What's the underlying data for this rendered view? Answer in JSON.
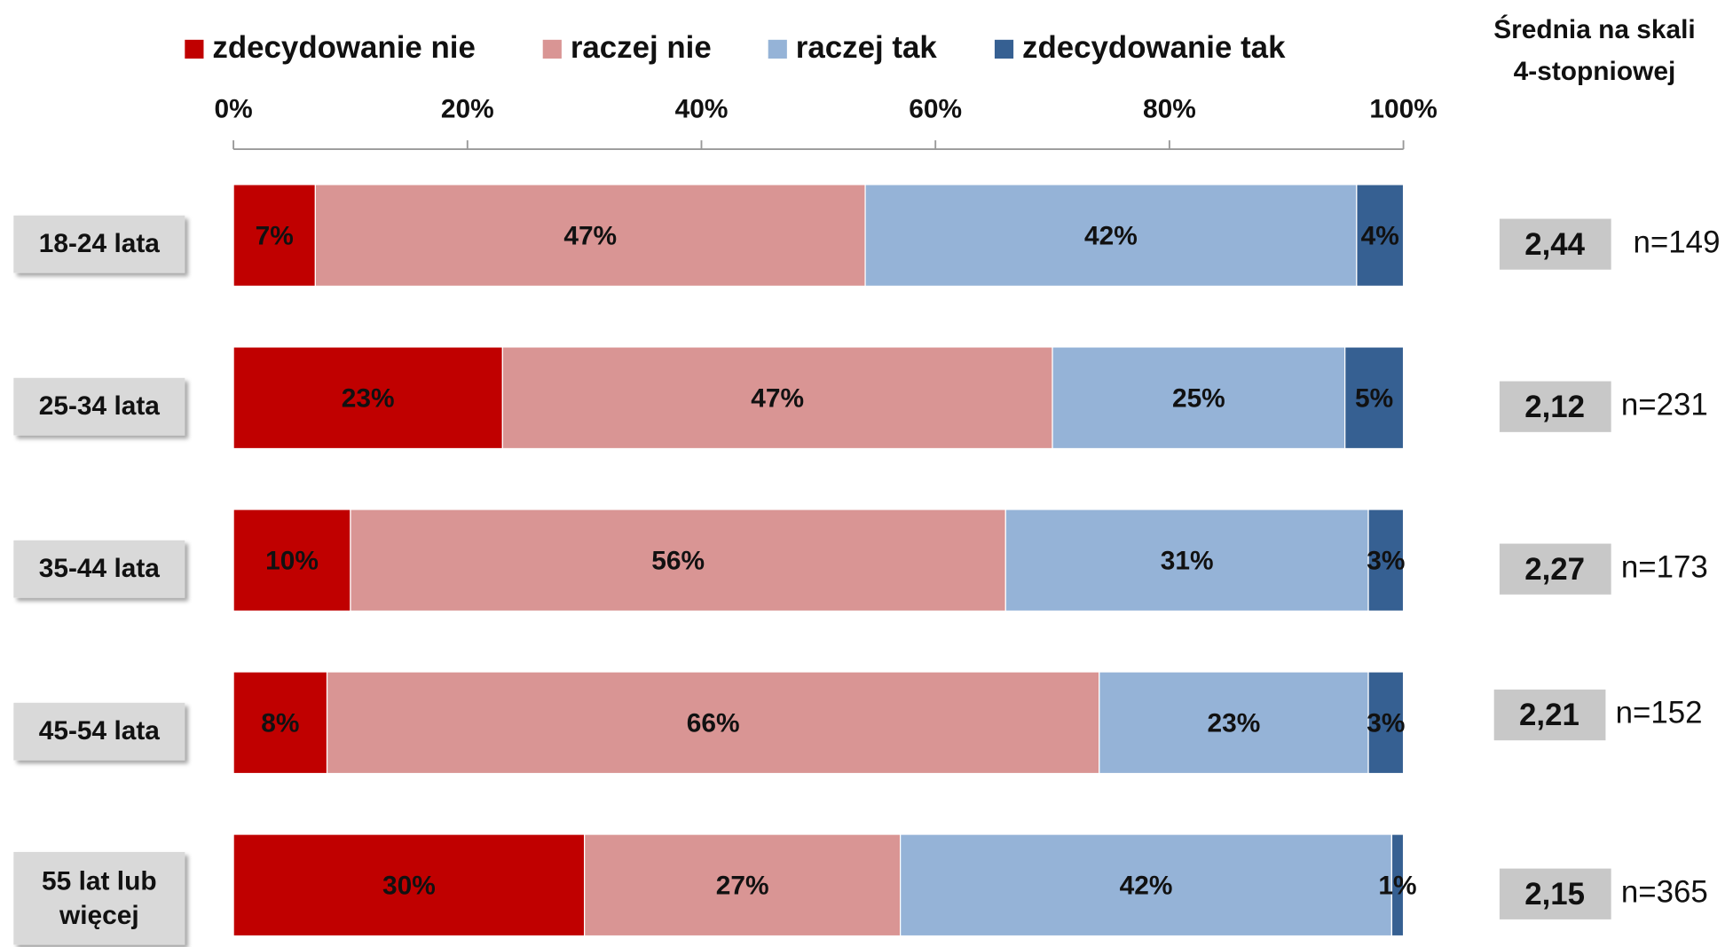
{
  "chart_data": {
    "type": "stacked_barh",
    "categories": [
      "18-24 lata",
      "25-34 lata",
      "35-44 lata",
      "45-54 lata",
      "55 lat lub więcej"
    ],
    "series": [
      {
        "name": "zdecydowanie nie",
        "color": "#c00000",
        "values": [
          7,
          23,
          10,
          8,
          30
        ],
        "value_labels": [
          "7%",
          "23%",
          "10%",
          "8%",
          "30%"
        ]
      },
      {
        "name": "raczej nie",
        "color": "#d99594",
        "values": [
          47,
          47,
          56,
          66,
          27
        ],
        "value_labels": [
          "47%",
          "47%",
          "56%",
          "66%",
          "27%"
        ]
      },
      {
        "name": "raczej tak",
        "color": "#95b3d7",
        "values": [
          42,
          25,
          31,
          23,
          42
        ],
        "value_labels": [
          "42%",
          "25%",
          "31%",
          "23%",
          "42%"
        ]
      },
      {
        "name": "zdecydowanie tak",
        "color": "#366092",
        "values": [
          4,
          5,
          3,
          3,
          1
        ],
        "value_labels": [
          "4%",
          "5%",
          "3%",
          "3%",
          "1%"
        ]
      }
    ],
    "xlim": [
      0,
      100
    ],
    "xticks": [
      {
        "value": 0,
        "label": "0%"
      },
      {
        "value": 20,
        "label": "20%"
      },
      {
        "value": 40,
        "label": "40%"
      },
      {
        "value": 60,
        "label": "60%"
      },
      {
        "value": 80,
        "label": "80%"
      },
      {
        "value": 100,
        "label": "100%"
      }
    ],
    "legend": "top",
    "mean_header": [
      "Średnia na skali",
      "4-stopniowej"
    ],
    "means": [
      "2,44",
      "2,12",
      "2,27",
      "2,21",
      "2,15"
    ],
    "counts": [
      "n=149",
      "n=231",
      "n=173",
      "n=152",
      "n=365"
    ]
  }
}
